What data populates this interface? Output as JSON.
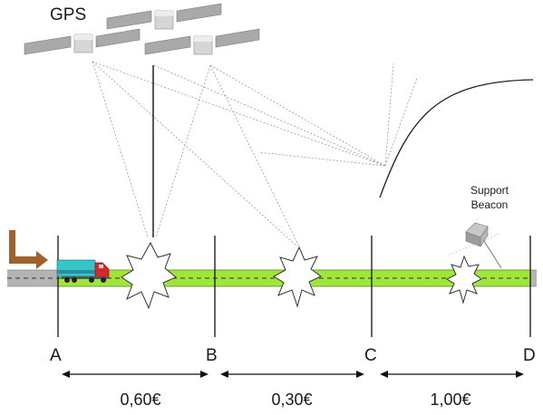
{
  "header": {
    "gps_label": "GPS"
  },
  "beacon": {
    "label_line1": "Support",
    "label_line2": "Beacon"
  },
  "sections": [
    {
      "marker": "A"
    },
    {
      "marker": "B"
    },
    {
      "marker": "C"
    },
    {
      "marker": "D"
    }
  ],
  "segments": [
    {
      "price": "0,60€"
    },
    {
      "price": "0,30€"
    },
    {
      "price": "1,00€"
    }
  ],
  "colors": {
    "road": "#b4b4b4",
    "toll_lane": "#9ee63a",
    "truck_cab": "#d8262b",
    "truck_trailer": "#35c6c6",
    "entry_arrow": "#a0622a",
    "signal_lines": "#999999"
  }
}
